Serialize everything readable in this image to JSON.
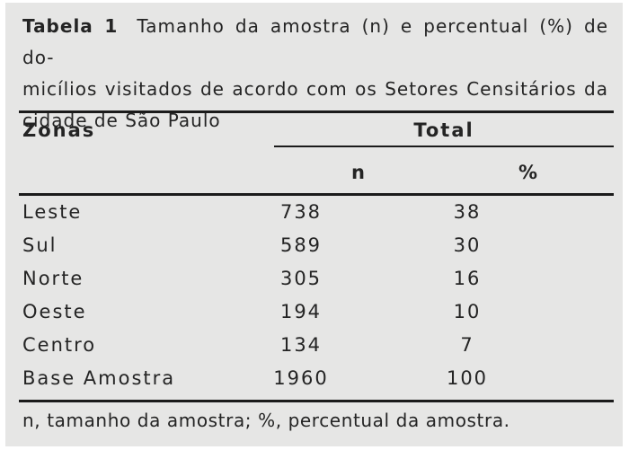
{
  "page": {
    "background_color": "#ffffff",
    "panel_color": "#e6e6e5",
    "text_color": "#242424",
    "rule_color": "#1b1b1b"
  },
  "caption": {
    "label": "Tabela 1",
    "line1": "Tamanho da amostra (n) e percentual (%) de do-",
    "line2": "micílios visitados de acordo com os Setores Censitários da",
    "line3": "cidade de São Paulo",
    "full_text": "Tabela 1 Tamanho da amostra (n) e percentual (%) de domicílios visitados de acordo com os Setores Censitários da cidade de São Paulo"
  },
  "table": {
    "column_header_zonas": "Zonas",
    "column_group_header": "Total",
    "subheader_n": "n",
    "subheader_pct": "%",
    "rows": [
      {
        "zona": "Leste",
        "n": "738",
        "pct": "38"
      },
      {
        "zona": "Sul",
        "n": "589",
        "pct": "30"
      },
      {
        "zona": "Norte",
        "n": "305",
        "pct": "16"
      },
      {
        "zona": "Oeste",
        "n": "194",
        "pct": "10"
      },
      {
        "zona": "Centro",
        "n": "134",
        "pct": "7"
      },
      {
        "zona": "Base Amostra",
        "n": "1960",
        "pct": "100"
      }
    ],
    "footnote": "n, tamanho da amostra; %, percentual da amostra."
  }
}
